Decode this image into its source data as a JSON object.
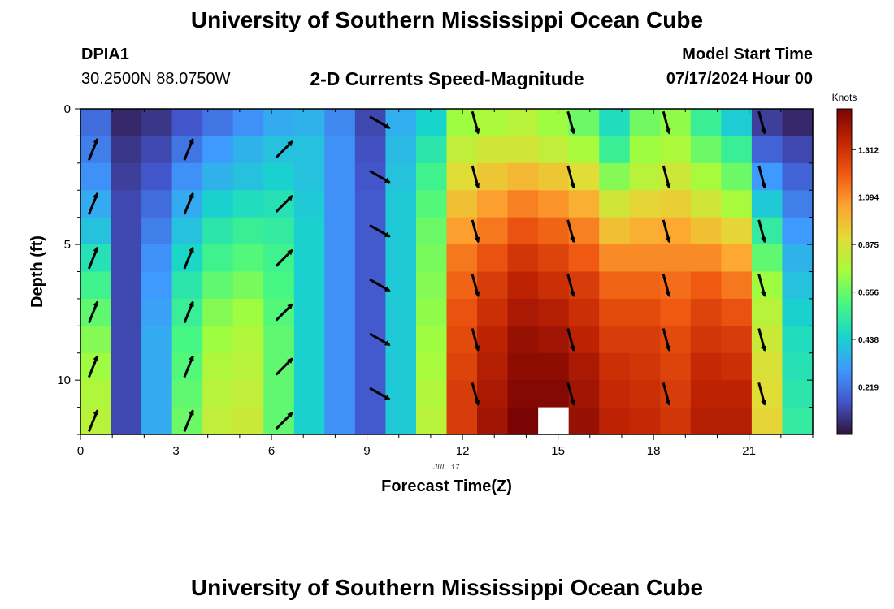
{
  "header": {
    "title": "University of Southern Mississippi Ocean Cube",
    "station_id": "DPIA1",
    "station_coords": "30.2500N  88.0750W",
    "subtitle": "2-D Currents Speed-Magnitude",
    "model_start_label": "Model Start Time",
    "model_start_value": "07/17/2024 Hour 00"
  },
  "footer": {
    "title": "University of Southern Mississippi Ocean Cube"
  },
  "chart_data": {
    "type": "heatmap",
    "title": "2-D Currents Speed-Magnitude",
    "xlabel": "Forecast Time(Z)",
    "ylabel": "Depth (ft)",
    "date_label": "JUL 17",
    "xlim": [
      0,
      23
    ],
    "ylim": [
      0,
      12
    ],
    "y_inverted": true,
    "x_ticks": [
      0,
      3,
      6,
      9,
      12,
      15,
      18,
      21
    ],
    "y_ticks": [
      0,
      5,
      10
    ],
    "colorbar": {
      "label": "Knots",
      "ticks": [
        0.219,
        0.438,
        0.656,
        0.875,
        1.094,
        1.312
      ],
      "range": [
        0.0,
        1.5
      ],
      "colormap": "turbo"
    },
    "hours": [
      0,
      1,
      2,
      3,
      4,
      5,
      6,
      7,
      8,
      9,
      10,
      11,
      12,
      13,
      14,
      15,
      16,
      17,
      18,
      19,
      20,
      21,
      22,
      23
    ],
    "depths_ft": [
      0.5,
      1.5,
      2.5,
      3.5,
      4.5,
      5.5,
      6.5,
      7.5,
      8.5,
      9.5,
      10.5,
      11.5
    ],
    "speed_knots": [
      [
        0.2,
        0.05,
        0.08,
        0.15,
        0.22,
        0.28,
        0.34,
        0.36,
        0.26,
        0.12,
        0.35,
        0.45,
        0.74,
        0.77,
        0.8,
        0.74,
        0.66,
        0.48,
        0.67,
        0.72,
        0.56,
        0.43,
        0.1,
        0.05
      ],
      [
        0.24,
        0.08,
        0.12,
        0.22,
        0.3,
        0.36,
        0.4,
        0.4,
        0.28,
        0.14,
        0.38,
        0.52,
        0.82,
        0.86,
        0.86,
        0.82,
        0.76,
        0.56,
        0.74,
        0.77,
        0.66,
        0.56,
        0.18,
        0.12
      ],
      [
        0.28,
        0.1,
        0.15,
        0.28,
        0.36,
        0.4,
        0.44,
        0.4,
        0.28,
        0.15,
        0.4,
        0.58,
        0.9,
        0.96,
        1.0,
        0.96,
        0.9,
        0.7,
        0.8,
        0.85,
        0.76,
        0.66,
        0.3,
        0.18
      ],
      [
        0.34,
        0.12,
        0.2,
        0.34,
        0.44,
        0.48,
        0.5,
        0.42,
        0.28,
        0.16,
        0.42,
        0.62,
        0.98,
        1.06,
        1.12,
        1.08,
        1.02,
        0.86,
        0.92,
        0.94,
        0.86,
        0.76,
        0.42,
        0.24
      ],
      [
        0.4,
        0.12,
        0.24,
        0.4,
        0.52,
        0.56,
        0.54,
        0.44,
        0.28,
        0.16,
        0.42,
        0.66,
        1.06,
        1.14,
        1.22,
        1.18,
        1.12,
        0.98,
        1.02,
        1.04,
        0.98,
        0.92,
        0.54,
        0.3
      ],
      [
        0.5,
        0.12,
        0.28,
        0.46,
        0.58,
        0.62,
        0.58,
        0.44,
        0.28,
        0.16,
        0.42,
        0.68,
        1.14,
        1.22,
        1.3,
        1.26,
        1.2,
        1.1,
        1.1,
        1.1,
        1.1,
        1.04,
        0.64,
        0.36
      ],
      [
        0.58,
        0.12,
        0.3,
        0.52,
        0.64,
        0.68,
        0.6,
        0.44,
        0.28,
        0.16,
        0.42,
        0.7,
        1.18,
        1.28,
        1.36,
        1.32,
        1.28,
        1.18,
        1.18,
        1.16,
        1.2,
        1.14,
        0.74,
        0.4
      ],
      [
        0.64,
        0.12,
        0.32,
        0.56,
        0.7,
        0.74,
        0.62,
        0.44,
        0.28,
        0.16,
        0.42,
        0.72,
        1.22,
        1.32,
        1.4,
        1.38,
        1.32,
        1.24,
        1.24,
        1.2,
        1.26,
        1.22,
        0.8,
        0.44
      ],
      [
        0.7,
        0.12,
        0.34,
        0.6,
        0.74,
        0.78,
        0.64,
        0.44,
        0.28,
        0.16,
        0.42,
        0.74,
        1.24,
        1.36,
        1.44,
        1.42,
        1.36,
        1.28,
        1.28,
        1.24,
        1.3,
        1.28,
        0.84,
        0.48
      ],
      [
        0.74,
        0.12,
        0.34,
        0.62,
        0.78,
        0.8,
        0.64,
        0.44,
        0.28,
        0.16,
        0.42,
        0.76,
        1.26,
        1.38,
        1.46,
        1.46,
        1.4,
        1.32,
        1.3,
        1.26,
        1.34,
        1.32,
        0.88,
        0.5
      ],
      [
        0.78,
        0.12,
        0.34,
        0.64,
        0.8,
        0.82,
        0.64,
        0.44,
        0.28,
        0.16,
        0.42,
        0.78,
        1.28,
        1.4,
        1.48,
        1.48,
        1.42,
        1.34,
        1.32,
        1.28,
        1.36,
        1.36,
        0.9,
        0.52
      ],
      [
        0.8,
        0.12,
        0.34,
        0.66,
        0.82,
        0.84,
        0.64,
        0.44,
        0.28,
        0.16,
        0.42,
        0.8,
        1.28,
        1.42,
        1.5,
        null,
        1.44,
        1.36,
        1.34,
        1.3,
        1.38,
        1.38,
        0.92,
        0.54
      ]
    ],
    "current_vectors": [
      {
        "hour": 0,
        "direction": "NNE",
        "depths_ft": [
          1.5,
          3.5,
          5.5,
          7.5,
          9.5,
          11.5
        ]
      },
      {
        "hour": 3,
        "direction": "NNE",
        "depths_ft": [
          1.5,
          3.5,
          5.5,
          7.5,
          9.5,
          11.5
        ]
      },
      {
        "hour": 6,
        "direction": "NE",
        "depths_ft": [
          1.5,
          3.5,
          5.5,
          7.5,
          9.5,
          11.5
        ]
      },
      {
        "hour": 9,
        "direction": "SE",
        "depths_ft": [
          0.5,
          2.5,
          4.5,
          6.5,
          8.5,
          10.5
        ]
      },
      {
        "hour": 12,
        "direction": "S",
        "depths_ft": [
          0.5,
          2.5,
          4.5,
          6.5,
          8.5,
          10.5
        ]
      },
      {
        "hour": 15,
        "direction": "S",
        "depths_ft": [
          0.5,
          2.5,
          4.5,
          6.5,
          8.5,
          10.5
        ]
      },
      {
        "hour": 18,
        "direction": "S",
        "depths_ft": [
          0.5,
          2.5,
          4.5,
          6.5,
          8.5,
          10.5
        ]
      },
      {
        "hour": 21,
        "direction": "S",
        "depths_ft": [
          0.5,
          2.5,
          4.5,
          6.5,
          8.5,
          10.5
        ]
      }
    ]
  }
}
